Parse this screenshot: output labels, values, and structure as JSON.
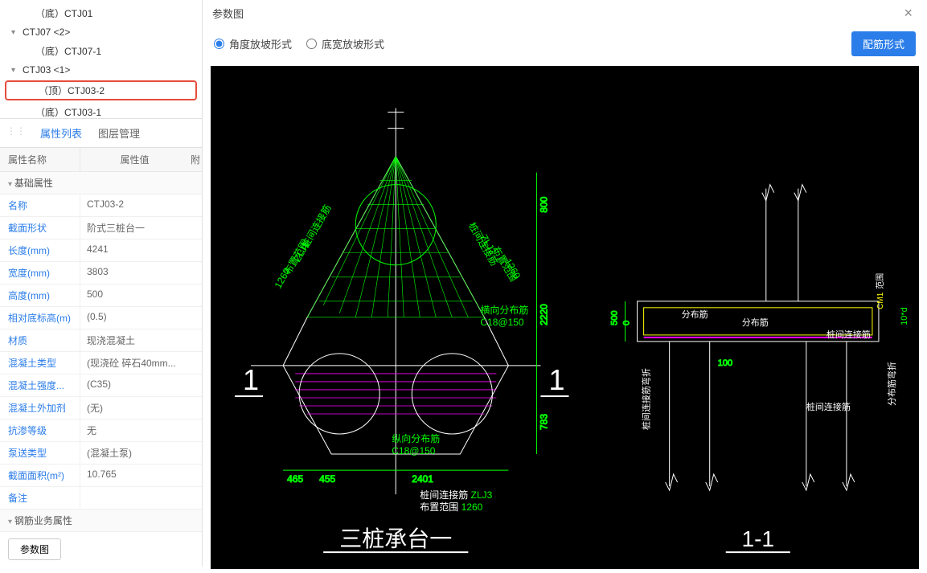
{
  "tree": {
    "items": [
      {
        "label": "（底）CTJ01",
        "indent": "child"
      },
      {
        "label": "CTJ07  <2>",
        "indent": "parent",
        "caret": "▾"
      },
      {
        "label": "（底）CTJ07-1",
        "indent": "child"
      },
      {
        "label": "CTJ03  <1>",
        "indent": "parent",
        "caret": "▾"
      },
      {
        "label": "（顶）CTJ03-2",
        "indent": "child",
        "selected": true
      },
      {
        "label": "（底）CTJ03-1",
        "indent": "child"
      }
    ]
  },
  "tabs": {
    "prop_list": "属性列表",
    "layer_mgmt": "图层管理"
  },
  "prop_header": {
    "name": "属性名称",
    "value": "属性值",
    "extra": "附"
  },
  "prop_groups": {
    "basic": "基础属性",
    "rebar": "钢筋业务属性"
  },
  "props": [
    {
      "k": "名称",
      "v": "CTJ03-2",
      "blue": true
    },
    {
      "k": "截面形状",
      "v": "阶式三桩台一",
      "blue": true
    },
    {
      "k": "长度(mm)",
      "v": "4241",
      "blue": true
    },
    {
      "k": "宽度(mm)",
      "v": "3803",
      "blue": true
    },
    {
      "k": "高度(mm)",
      "v": "500",
      "blue": true
    },
    {
      "k": "相对底标高(m)",
      "v": "(0.5)",
      "blue": true
    },
    {
      "k": "材质",
      "v": "现浇混凝土",
      "blue": true
    },
    {
      "k": "混凝土类型",
      "v": "(现浇砼 碎石40mm...",
      "blue": true
    },
    {
      "k": "混凝土强度...",
      "v": "(C35)",
      "blue": true
    },
    {
      "k": "混凝土外加剂",
      "v": "(无)",
      "blue": true
    },
    {
      "k": "抗渗等级",
      "v": "无",
      "blue": true
    },
    {
      "k": "泵送类型",
      "v": "(混凝土泵)",
      "blue": true
    },
    {
      "k": "截面面积(m²)",
      "v": "10.765",
      "blue": true
    },
    {
      "k": "备注",
      "v": "",
      "blue": true
    }
  ],
  "param_btn": "参数图",
  "panel_title": "参数图",
  "radio": {
    "angle": "角度放坡形式",
    "width": "底宽放坡形式"
  },
  "rebar_btn": "配筋形式",
  "drawing": {
    "colors": {
      "bg": "#000000",
      "green": "#00ff00",
      "cyan": "#00ffff",
      "magenta": "#ff00ff",
      "yellow": "#ffff00",
      "white": "#ffffff"
    },
    "plan": {
      "title": "三桩承台一",
      "big1_left": "1",
      "big1_right": "1",
      "dims": {
        "h800": "800",
        "h2220": "2220",
        "h783": "783",
        "w465": "465",
        "w455": "455",
        "w2401": "2401",
        "h500": "500",
        "h100": "100"
      },
      "labels": {
        "zlj1": "ZLJ1",
        "zlj2": "ZLJ2",
        "zlj3": "ZLJ3",
        "pile_conn": "桩间连接筋",
        "range": "布置范围",
        "r1260": "1260",
        "horiz_dist": "横向分布筋",
        "vert_dist": "纵向分布筋",
        "c18_150": "C18@150",
        "dist_rebar": "分布筋",
        "range_rebar": "分布筋弯折",
        "pile_conn_bend": "桩间连接筋弯折",
        "ten_d": "10*d",
        "cm1": "CM1"
      }
    },
    "section": {
      "title": "1-1"
    }
  }
}
